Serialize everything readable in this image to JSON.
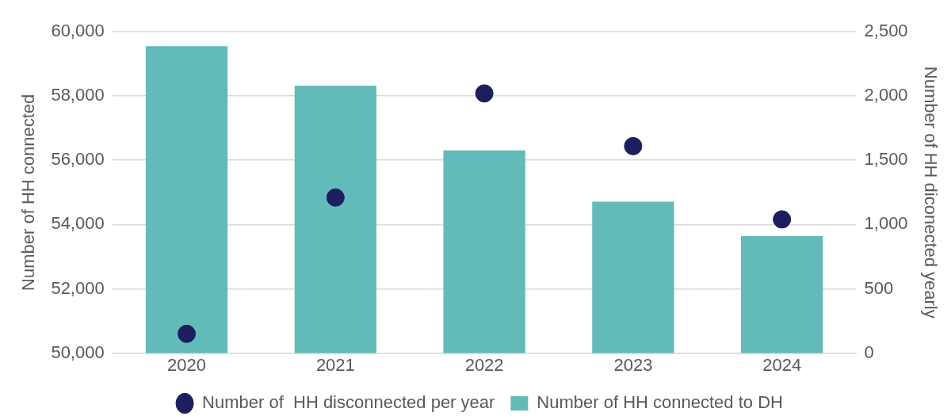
{
  "chart_data": {
    "type": "bar",
    "categories": [
      "2020",
      "2021",
      "2022",
      "2023",
      "2024"
    ],
    "ylabel": "Number of HH connected",
    "y2label": "Number of HH diconected yearly",
    "series": [
      {
        "name": "Number of HH connected to DH",
        "color": "#62bbb8",
        "values": [
          59550,
          58320,
          56310,
          54710,
          53640
        ]
      },
      {
        "name": "Number of  HH disconnected per year",
        "type": "scatter",
        "axis": "y2",
        "marker": "circle",
        "color": "#1b1f5e",
        "values": [
          150,
          1210,
          2020,
          1610,
          1040
        ]
      }
    ],
    "ylim": [
      50000,
      60000
    ],
    "yticks": [
      {
        "value": 50000,
        "label": "50,000"
      },
      {
        "value": 52000,
        "label": "52,000"
      },
      {
        "value": 54000,
        "label": "54,000"
      },
      {
        "value": 56000,
        "label": "56,000"
      },
      {
        "value": 58000,
        "label": "58,000"
      },
      {
        "value": 60000,
        "label": "60,000"
      }
    ],
    "y2lim": [
      0,
      2500
    ],
    "y2ticks": [
      0,
      500,
      {
        "value": 1000,
        "label": "1,000"
      },
      {
        "value": 1500,
        "label": "1,500"
      },
      {
        "value": 2000,
        "label": "2,000"
      },
      {
        "value": 2500,
        "label": "2,500"
      }
    ],
    "grid": "y",
    "legend": "bottom"
  }
}
